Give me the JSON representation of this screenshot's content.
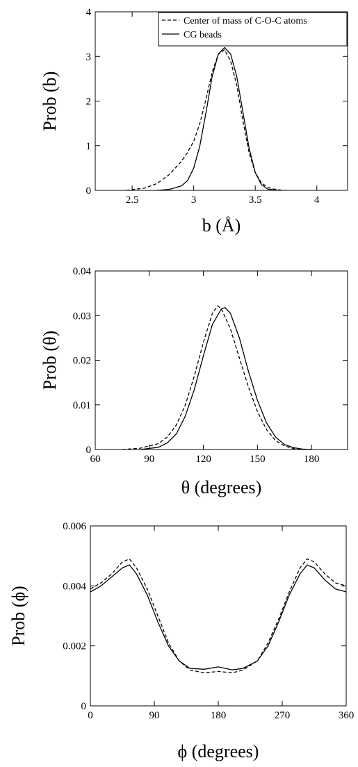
{
  "chart_data": [
    {
      "type": "line",
      "xlabel": "b (Å)",
      "ylabel": "Prob (b)",
      "xlim": [
        2.2,
        4.25
      ],
      "ylim": [
        0,
        4
      ],
      "xticks": [
        2.5,
        3,
        3.5,
        4
      ],
      "yticks": [
        0,
        1,
        2,
        3,
        4
      ],
      "xtick_labels": [
        "2.5",
        "3",
        "3.5",
        "4"
      ],
      "ytick_labels": [
        "0",
        "1",
        "2",
        "3",
        "4"
      ],
      "legend": {
        "position": "top-right",
        "entries": [
          "Center of mass of C-O-C atoms",
          "CG beads"
        ]
      },
      "series": [
        {
          "name": "Center of mass of C-O-C atoms",
          "style": "dashed",
          "x": [
            2.45,
            2.6,
            2.7,
            2.8,
            2.85,
            2.9,
            2.95,
            3.0,
            3.05,
            3.1,
            3.15,
            3.2,
            3.25,
            3.3,
            3.35,
            3.4,
            3.45,
            3.5,
            3.55,
            3.6,
            3.65,
            3.7,
            3.75
          ],
          "y": [
            0.0,
            0.05,
            0.15,
            0.35,
            0.5,
            0.65,
            0.85,
            1.1,
            1.5,
            2.05,
            2.65,
            3.05,
            3.15,
            2.9,
            2.35,
            1.55,
            0.85,
            0.4,
            0.17,
            0.07,
            0.03,
            0.01,
            0.0
          ]
        },
        {
          "name": "CG beads",
          "style": "solid",
          "x": [
            2.7,
            2.8,
            2.9,
            2.95,
            3.0,
            3.05,
            3.1,
            3.15,
            3.2,
            3.25,
            3.3,
            3.35,
            3.4,
            3.45,
            3.5,
            3.55,
            3.6,
            3.65,
            3.7
          ],
          "y": [
            0.0,
            0.02,
            0.1,
            0.22,
            0.5,
            1.0,
            1.75,
            2.55,
            3.05,
            3.2,
            3.05,
            2.55,
            1.75,
            0.95,
            0.4,
            0.13,
            0.03,
            0.01,
            0.0
          ]
        }
      ]
    },
    {
      "type": "line",
      "xlabel": "θ (degrees)",
      "ylabel": "Prob (θ)",
      "xlim": [
        60,
        200
      ],
      "ylim": [
        0,
        0.04
      ],
      "xticks": [
        60,
        90,
        120,
        150,
        180
      ],
      "yticks": [
        0,
        0.01,
        0.02,
        0.03,
        0.04
      ],
      "xtick_labels": [
        "60",
        "90",
        "120",
        "150",
        "180"
      ],
      "ytick_labels": [
        "0",
        "0.01",
        "0.02",
        "0.03",
        "0.04"
      ],
      "series": [
        {
          "name": "Center of mass of C-O-C atoms",
          "style": "dashed",
          "x": [
            75,
            85,
            95,
            100,
            105,
            110,
            115,
            120,
            125,
            128,
            130,
            135,
            140,
            145,
            150,
            155,
            160,
            165,
            170,
            175,
            180
          ],
          "y": [
            0.0,
            0.0003,
            0.0013,
            0.0028,
            0.0055,
            0.01,
            0.0165,
            0.024,
            0.0305,
            0.0322,
            0.0315,
            0.027,
            0.0205,
            0.014,
            0.0085,
            0.0045,
            0.002,
            0.0008,
            0.0002,
            0.0,
            0.0
          ]
        },
        {
          "name": "CG beads",
          "style": "solid",
          "x": [
            85,
            95,
            100,
            105,
            110,
            115,
            120,
            125,
            130,
            132,
            135,
            140,
            145,
            150,
            155,
            160,
            165,
            170,
            175,
            180
          ],
          "y": [
            0.0,
            0.0005,
            0.0015,
            0.0035,
            0.0075,
            0.0135,
            0.021,
            0.028,
            0.0315,
            0.0318,
            0.0305,
            0.025,
            0.0175,
            0.011,
            0.006,
            0.0028,
            0.0011,
            0.0004,
            0.0001,
            0.0
          ]
        }
      ]
    },
    {
      "type": "line",
      "xlabel": "ϕ (degrees)",
      "ylabel": "Prob (ϕ)",
      "xlim": [
        0,
        360
      ],
      "ylim": [
        0,
        0.006
      ],
      "xticks": [
        0,
        90,
        180,
        270,
        360
      ],
      "yticks": [
        0,
        0.002,
        0.004,
        0.006
      ],
      "xtick_labels": [
        "0",
        "90",
        "180",
        "270",
        "360"
      ],
      "ytick_labels": [
        "0",
        "0.002",
        "0.004",
        "0.006"
      ],
      "series": [
        {
          "name": "Center of mass of C-O-C atoms",
          "style": "dashed",
          "x": [
            0,
            15,
            30,
            45,
            55,
            65,
            80,
            95,
            110,
            125,
            140,
            160,
            180,
            200,
            215,
            235,
            250,
            265,
            280,
            295,
            305,
            315,
            330,
            345,
            360
          ],
          "y": [
            0.0039,
            0.0041,
            0.0044,
            0.0048,
            0.0049,
            0.0046,
            0.0039,
            0.003,
            0.0021,
            0.0015,
            0.0012,
            0.0011,
            0.00115,
            0.0011,
            0.0012,
            0.0015,
            0.0021,
            0.0029,
            0.0038,
            0.0046,
            0.0049,
            0.0048,
            0.0044,
            0.0041,
            0.004
          ]
        },
        {
          "name": "CG beads",
          "style": "solid",
          "x": [
            0,
            15,
            30,
            45,
            55,
            65,
            80,
            95,
            110,
            125,
            140,
            160,
            180,
            200,
            215,
            235,
            250,
            265,
            280,
            295,
            305,
            315,
            330,
            345,
            360
          ],
          "y": [
            0.0038,
            0.004,
            0.0043,
            0.0046,
            0.0047,
            0.0044,
            0.0037,
            0.0028,
            0.002,
            0.0015,
            0.00125,
            0.00122,
            0.0013,
            0.0012,
            0.00125,
            0.0015,
            0.002,
            0.0028,
            0.0037,
            0.0044,
            0.0047,
            0.0046,
            0.0042,
            0.0039,
            0.0038
          ]
        }
      ]
    }
  ]
}
